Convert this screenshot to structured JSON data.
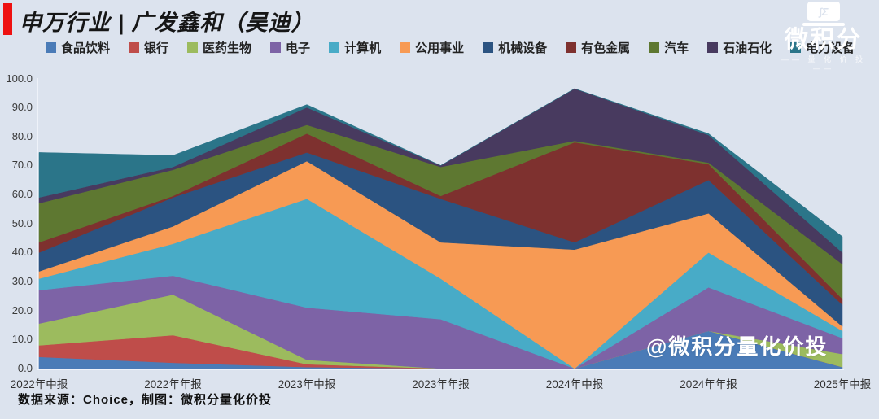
{
  "title": "申万行业 | 广发鑫和（吴迪）",
  "watermark": "@微积分量化价投",
  "source_note": "数据来源：Choice，制图：微积分量化价投",
  "logo": {
    "icon_symbols": "∫Σ",
    "brand": "微积分",
    "sub": "量 化 价 投"
  },
  "colors": {
    "background": "#dce3ee",
    "title_bar": "#ee1111",
    "text": "#161616",
    "axis_text": "#3a3a3a",
    "watermark_text": "#ffffff"
  },
  "chart_data": {
    "type": "area",
    "stacked": true,
    "grid": false,
    "legend_position": "top",
    "ylim": [
      0,
      100
    ],
    "ytick_step": 10,
    "ytick_format": "one_decimal",
    "categories": [
      "2022年中报",
      "2022年年报",
      "2023年中报",
      "2023年年报",
      "2024年中报",
      "2024年年报",
      "2025年中报"
    ],
    "series": [
      {
        "id": "food-beverage",
        "name": "食品饮料",
        "color": "#4a7bb7",
        "values": [
          4.0,
          2.0,
          0.5,
          0,
          0,
          13.0,
          0.5
        ]
      },
      {
        "id": "bank",
        "name": "银行",
        "color": "#bf4d4a",
        "values": [
          4.0,
          9.5,
          1.0,
          0,
          0,
          0,
          0
        ]
      },
      {
        "id": "pharma-bio",
        "name": "医药生物",
        "color": "#9cbb5e",
        "values": [
          7.5,
          14.0,
          1.5,
          0,
          0,
          0,
          4.5
        ]
      },
      {
        "id": "electronics",
        "name": "电子",
        "color": "#7d63a6",
        "values": [
          11.5,
          6.5,
          18.0,
          17.0,
          0,
          15.0,
          5.5
        ]
      },
      {
        "id": "computer",
        "name": "计算机",
        "color": "#48abc7",
        "values": [
          4.0,
          11.0,
          37.5,
          14.0,
          0,
          12.0,
          2.5
        ]
      },
      {
        "id": "utilities",
        "name": "公用事业",
        "color": "#f79a54",
        "values": [
          2.5,
          6.0,
          13.0,
          12.5,
          41.0,
          13.5,
          1.5
        ]
      },
      {
        "id": "machinery",
        "name": "机械设备",
        "color": "#2b5381",
        "values": [
          6.5,
          10.0,
          3.0,
          15.0,
          2.5,
          11.5,
          7.5
        ]
      },
      {
        "id": "nonferrous-metals",
        "name": "有色金属",
        "color": "#7e312f",
        "values": [
          3.5,
          0.5,
          6.5,
          1.0,
          34.5,
          5.5,
          2.0
        ]
      },
      {
        "id": "automobile",
        "name": "汽车",
        "color": "#5e7831",
        "values": [
          13.5,
          9.0,
          3.0,
          10.0,
          0.5,
          0.5,
          12.0
        ]
      },
      {
        "id": "petroleum-petrochem",
        "name": "石油石化",
        "color": "#483a5f",
        "values": [
          2.0,
          1.0,
          6.0,
          0.5,
          18.0,
          9.5,
          4.0
        ]
      },
      {
        "id": "power-equipment",
        "name": "电力设备",
        "color": "#2b7589",
        "values": [
          15.5,
          4.0,
          1.0,
          0,
          0,
          0.5,
          5.5
        ]
      }
    ]
  }
}
